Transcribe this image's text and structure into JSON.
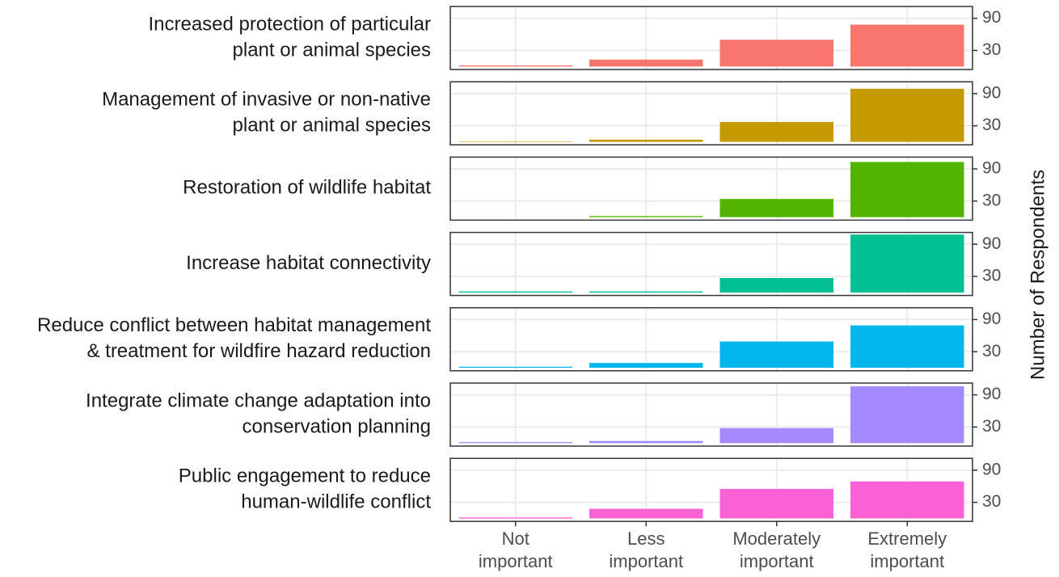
{
  "chart_data": {
    "type": "bar",
    "categories": [
      [
        "Not",
        "important"
      ],
      [
        "Less",
        "important"
      ],
      [
        "Moderately",
        "important"
      ],
      [
        "Extremely",
        "important"
      ]
    ],
    "y_label": "Number of Respondents",
    "ylim": [
      -5.5,
      112
    ],
    "yticks": [
      30,
      90
    ],
    "grid": true,
    "facets": [
      {
        "title": [
          "Increased protection of particular",
          "plant or animal species"
        ],
        "color": "#F8766D",
        "values": [
          2,
          13,
          50,
          78
        ]
      },
      {
        "title": [
          "Management of invasive or non-native",
          "plant or animal species"
        ],
        "color": "#C49A00",
        "values": [
          1,
          4,
          37,
          99
        ]
      },
      {
        "title": [
          "Restoration of wildlife habitat"
        ],
        "color": "#53B400",
        "values": [
          0,
          2,
          34,
          103
        ]
      },
      {
        "title": [
          "Increase habitat connectivity"
        ],
        "color": "#00C094",
        "values": [
          2,
          2,
          27,
          108
        ]
      },
      {
        "title": [
          "Reduce conflict between habitat management",
          "& treatment for wildfire hazard reduction"
        ],
        "color": "#00B6EB",
        "values": [
          2,
          9,
          49,
          79
        ]
      },
      {
        "title": [
          "Integrate climate change adaptation into",
          "conservation planning"
        ],
        "color": "#A58AFF",
        "values": [
          2,
          4,
          28,
          106
        ]
      },
      {
        "title": [
          "Public engagement to reduce",
          "human-wildlife conflict"
        ],
        "color": "#FB61D7",
        "values": [
          2,
          18,
          55,
          69
        ]
      }
    ]
  }
}
